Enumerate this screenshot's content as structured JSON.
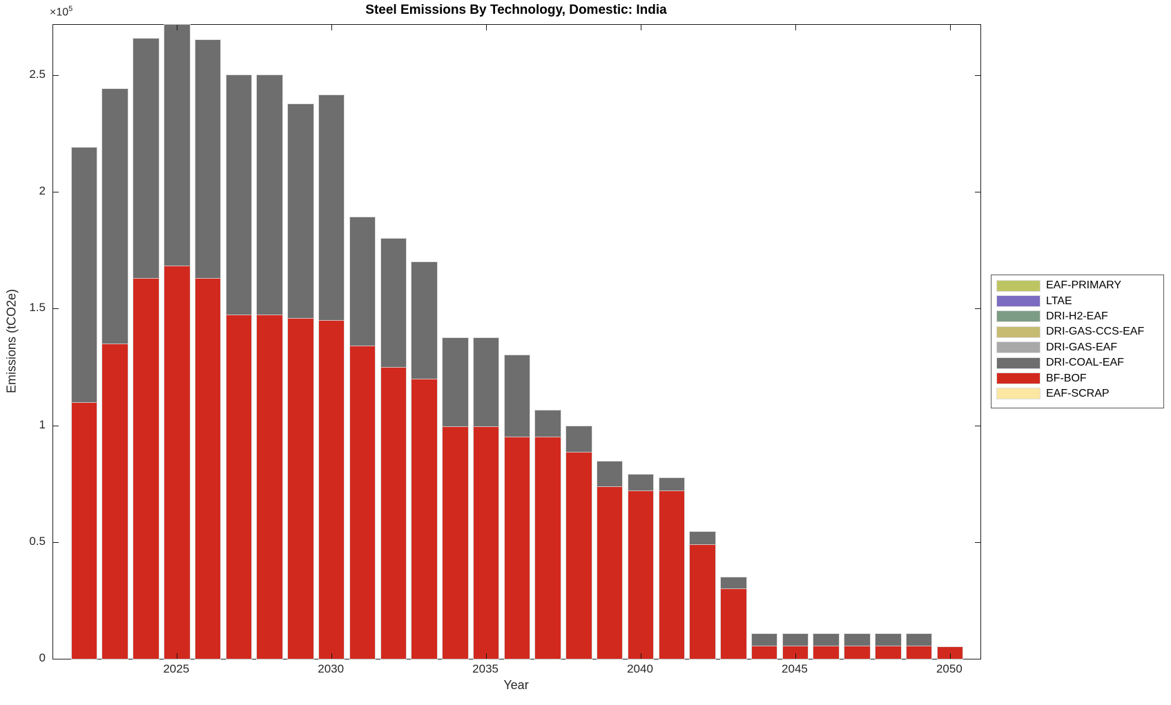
{
  "chart_data": {
    "type": "bar",
    "stacked": true,
    "title": "Steel Emissions By Technology, Domestic: India",
    "xlabel": "Year",
    "ylabel": "Emissions (tCO2e)",
    "y_multiplier_base": "×10",
    "y_multiplier_exp": "5",
    "x": [
      2022,
      2023,
      2024,
      2025,
      2026,
      2027,
      2028,
      2029,
      2030,
      2031,
      2032,
      2033,
      2034,
      2035,
      2036,
      2037,
      2038,
      2039,
      2040,
      2041,
      2042,
      2043,
      2044,
      2045,
      2046,
      2047,
      2048,
      2049,
      2050
    ],
    "series": [
      {
        "name": "EAF-PRIMARY",
        "color": "#bdc563",
        "values": [
          0,
          0,
          0,
          0,
          0,
          0,
          0,
          0,
          0,
          0,
          0,
          0,
          0,
          0,
          0,
          0,
          0,
          0,
          0,
          0,
          0,
          0,
          0,
          0,
          0,
          0,
          0,
          0,
          0
        ]
      },
      {
        "name": "LTAE",
        "color": "#7b6bc1",
        "values": [
          0,
          0,
          0,
          0,
          0,
          0,
          0,
          0,
          0,
          0,
          0,
          0,
          0,
          0,
          0,
          0,
          0,
          0,
          0,
          0,
          0,
          0,
          0,
          0,
          0,
          0,
          0,
          0,
          0
        ]
      },
      {
        "name": "DRI-H2-EAF",
        "color": "#7d9c85",
        "values": [
          0,
          0,
          0,
          0,
          0,
          0,
          0,
          0,
          0,
          0,
          0,
          0,
          0,
          0,
          0,
          0,
          0,
          0,
          0,
          0,
          0,
          0,
          0,
          0,
          0,
          0,
          0,
          0,
          0
        ]
      },
      {
        "name": "DRI-GAS-CCS-EAF",
        "color": "#c7bb72",
        "values": [
          0,
          0,
          0,
          0,
          0,
          0,
          0,
          0,
          0,
          0,
          0,
          0,
          0,
          0,
          0,
          0,
          0,
          0,
          0,
          0,
          0,
          0,
          0,
          0,
          0,
          0,
          0,
          0,
          0
        ]
      },
      {
        "name": "DRI-GAS-EAF",
        "color": "#a9a9a9",
        "values": [
          0,
          0,
          0,
          0,
          0,
          0,
          0,
          0,
          0,
          0,
          0,
          0,
          0,
          0,
          0,
          0,
          0,
          0,
          0,
          0,
          0,
          0,
          0,
          0,
          0,
          0,
          0,
          0,
          0
        ]
      },
      {
        "name": "DRI-COAL-EAF",
        "color": "#6e6e6e",
        "values": [
          109000,
          109000,
          102500,
          103500,
          102000,
          102500,
          102500,
          91500,
          96500,
          55000,
          55000,
          50000,
          38000,
          38000,
          35000,
          11500,
          11000,
          10500,
          7000,
          5500,
          5500,
          5000,
          5000,
          5000,
          5000,
          5000,
          5000,
          5000,
          0
        ]
      },
      {
        "name": "BF-BOF",
        "color": "#d2291f",
        "values": [
          110000,
          135000,
          163000,
          168500,
          163000,
          147500,
          147500,
          146000,
          145000,
          134000,
          125000,
          120000,
          99500,
          99500,
          95000,
          95000,
          88500,
          74000,
          72000,
          72000,
          49000,
          30000,
          5500,
          5500,
          5500,
          5500,
          5500,
          5500,
          5000
        ]
      },
      {
        "name": "EAF-SCRAP",
        "color": "#fbe7a1",
        "values": [
          0,
          0,
          0,
          0,
          0,
          0,
          0,
          0,
          0,
          0,
          0,
          0,
          0,
          0,
          0,
          0,
          0,
          0,
          0,
          0,
          0,
          0,
          0,
          0,
          0,
          0,
          0,
          0,
          0
        ]
      }
    ],
    "ylim": [
      0,
      271500
    ],
    "xticks": [
      2025,
      2030,
      2035,
      2040,
      2045,
      2050
    ],
    "yticks": {
      "values": [
        0,
        50000,
        100000,
        150000,
        200000,
        250000
      ],
      "labels": [
        "0",
        "0.5",
        "1",
        "1.5",
        "2",
        "2.5"
      ]
    },
    "legend_position": "outside-right",
    "grid": false
  }
}
